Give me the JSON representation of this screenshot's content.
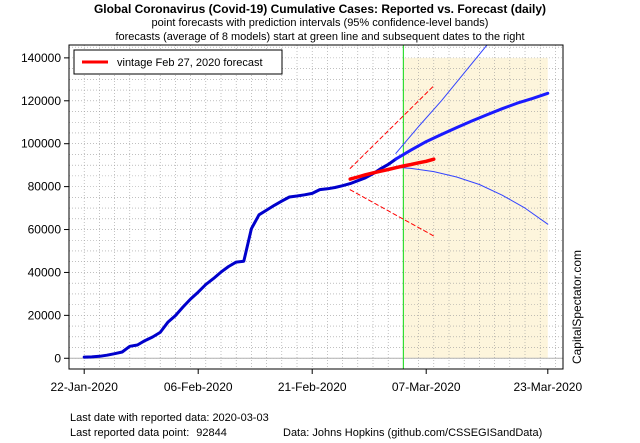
{
  "title": "Global Coronavirus (Covid-19) Cumulative Cases: Reported vs. Forecast (daily)",
  "subtitle1": "point forecasts with prediction intervals (95% confidence-level bands)",
  "subtitle2": "forecasts (average of 8 models) start at green line and subsequent dates to the right",
  "watermark": "CapitalSpectator.com",
  "footer": {
    "last_date_label": "Last date with reported data:",
    "last_date_value": "2020-03-03",
    "last_point_label": "Last reported data point:",
    "last_point_value": "92844",
    "source": "Data: Johns Hopkins (github.com/CSSEGISandData)"
  },
  "colors": {
    "reported": "#0000cc",
    "forecast_point": "#1a1aff",
    "forecast_bands": "#3344ff",
    "vintage": "#ff0000",
    "vintage_bands": "#ff0000",
    "forecast_start_line": "#33dd33",
    "forecast_region": "#fdf5dc"
  },
  "chart_data": {
    "type": "line",
    "x_axis": {
      "type": "date",
      "range": [
        "2020-01-20",
        "2020-03-25"
      ],
      "ticks": [
        {
          "date": "2020-01-22",
          "label": "22-Jan-2020"
        },
        {
          "date": "2020-02-06",
          "label": "06-Feb-2020"
        },
        {
          "date": "2020-02-21",
          "label": "21-Feb-2020"
        },
        {
          "date": "2020-03-07",
          "label": "07-Mar-2020"
        },
        {
          "date": "2020-03-23",
          "label": "23-Mar-2020"
        }
      ]
    },
    "y_axis": {
      "range": [
        -5000,
        146000
      ],
      "ticks": [
        0,
        20000,
        40000,
        60000,
        80000,
        100000,
        120000,
        140000
      ],
      "tick_labels": [
        "0",
        "20000",
        "40000",
        "60000",
        "80000",
        "100000",
        "120000",
        "140000"
      ]
    },
    "grid": "dotted",
    "forecast_start": "2020-03-04",
    "forecast_region": [
      "2020-03-04",
      "2020-03-23"
    ],
    "legend": {
      "position": "top-left",
      "entries": [
        "vintage Feb 27, 2020 forecast"
      ]
    },
    "series": [
      {
        "role": "reported",
        "x": [
          "2020-01-22",
          "2020-01-23",
          "2020-01-24",
          "2020-01-25",
          "2020-01-26",
          "2020-01-27",
          "2020-01-28",
          "2020-01-29",
          "2020-01-30",
          "2020-01-31",
          "2020-02-01",
          "2020-02-02",
          "2020-02-03",
          "2020-02-04",
          "2020-02-05",
          "2020-02-06",
          "2020-02-07",
          "2020-02-08",
          "2020-02-09",
          "2020-02-10",
          "2020-02-11",
          "2020-02-12",
          "2020-02-13",
          "2020-02-14",
          "2020-02-15",
          "2020-02-16",
          "2020-02-17",
          "2020-02-18",
          "2020-02-19",
          "2020-02-20",
          "2020-02-21",
          "2020-02-22",
          "2020-02-23",
          "2020-02-24",
          "2020-02-25",
          "2020-02-26",
          "2020-02-27",
          "2020-02-28",
          "2020-02-29",
          "2020-03-01",
          "2020-03-02",
          "2020-03-03"
        ],
        "y": [
          555,
          654,
          941,
          1434,
          2118,
          2927,
          5578,
          6166,
          8234,
          9927,
          12038,
          16787,
          19881,
          23892,
          27636,
          30818,
          34392,
          37121,
          40151,
          42763,
          44803,
          45222,
          60370,
          66887,
          69032,
          71226,
          73260,
          75138,
          75641,
          76199,
          76843,
          78599,
          78985,
          79570,
          80415,
          81397,
          82756,
          84124,
          86013,
          88371,
          90309,
          92844
        ]
      },
      {
        "name": "vintage Feb 27, 2020 forecast",
        "x": [
          "2020-02-26",
          "2020-02-27",
          "2020-02-28",
          "2020-02-29",
          "2020-03-01",
          "2020-03-02",
          "2020-03-03",
          "2020-03-04",
          "2020-03-05",
          "2020-03-06",
          "2020-03-07",
          "2020-03-08"
        ],
        "y": [
          83500,
          84500,
          85500,
          86400,
          87200,
          88000,
          88800,
          89600,
          90300,
          91100,
          91800,
          92800
        ]
      },
      {
        "role": "vintage upper band",
        "x": [
          "2020-02-26",
          "2020-03-08"
        ],
        "y": [
          88500,
          127000
        ]
      },
      {
        "role": "vintage lower band",
        "x": [
          "2020-02-26",
          "2020-03-08"
        ],
        "y": [
          78500,
          57000
        ]
      },
      {
        "role": "forecast",
        "x": [
          "2020-03-03",
          "2020-03-05",
          "2020-03-07",
          "2020-03-09",
          "2020-03-11",
          "2020-03-13",
          "2020-03-15",
          "2020-03-17",
          "2020-03-19",
          "2020-03-21",
          "2020-03-23"
        ],
        "y": [
          92844,
          97000,
          101000,
          104300,
          107500,
          110600,
          113500,
          116300,
          118900,
          121100,
          123500
        ]
      },
      {
        "role": "forecast upper band",
        "x": [
          "2020-03-03",
          "2020-03-06",
          "2020-03-09",
          "2020-03-12",
          "2020-03-15"
        ],
        "y": [
          95500,
          108000,
          120000,
          133000,
          146000
        ]
      },
      {
        "role": "forecast lower band",
        "x": [
          "2020-03-03",
          "2020-03-05",
          "2020-03-08",
          "2020-03-11",
          "2020-03-14",
          "2020-03-17",
          "2020-03-20",
          "2020-03-23"
        ],
        "y": [
          89000,
          88500,
          87000,
          84500,
          81000,
          76000,
          70000,
          62500
        ]
      }
    ]
  }
}
